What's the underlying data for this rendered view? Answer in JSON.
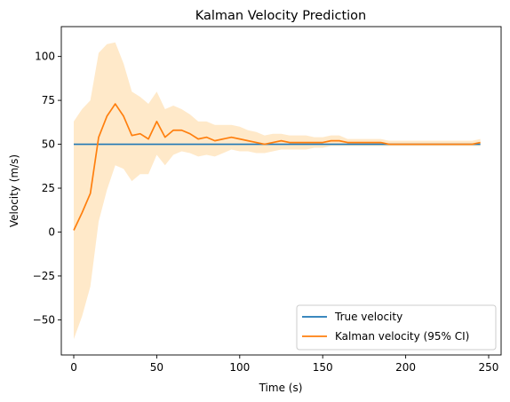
{
  "chart_data": {
    "type": "line",
    "title": "Kalman Velocity Prediction",
    "xlabel": "Time (s)",
    "ylabel": "Velocity (m/s)",
    "xlim": [
      -7.5,
      257.5
    ],
    "ylim": [
      -70,
      117
    ],
    "x_ticks": [
      0,
      50,
      100,
      150,
      200,
      250
    ],
    "x_tick_labels": [
      "0",
      "50",
      "100",
      "150",
      "200",
      "250"
    ],
    "y_ticks": [
      -50,
      -25,
      0,
      25,
      50,
      75,
      100
    ],
    "y_tick_labels": [
      "−50",
      "−25",
      "0",
      "25",
      "50",
      "75",
      "100"
    ],
    "grid": false,
    "legend_position": "lower-right",
    "series": [
      {
        "name": "True velocity",
        "color": "#1f77b4",
        "x": [
          0,
          245
        ],
        "y": [
          50,
          50
        ]
      },
      {
        "name": "Kalman velocity (95% CI)",
        "color": "#ff7f0e",
        "band_color": "#ffe9c9",
        "x": [
          0,
          5,
          10,
          15,
          20,
          25,
          30,
          35,
          40,
          45,
          50,
          55,
          60,
          65,
          70,
          75,
          80,
          85,
          90,
          95,
          100,
          105,
          110,
          115,
          120,
          125,
          130,
          135,
          140,
          145,
          150,
          155,
          160,
          165,
          170,
          175,
          180,
          185,
          190,
          195,
          200,
          205,
          210,
          215,
          220,
          225,
          230,
          235,
          240,
          245
        ],
        "y": [
          1,
          11,
          22,
          54,
          66,
          73,
          66,
          55,
          56,
          53,
          63,
          54,
          58,
          58,
          56,
          53,
          54,
          52,
          53,
          54,
          53,
          52,
          51,
          50,
          51,
          52,
          51,
          51,
          51,
          51,
          51,
          52,
          52,
          51,
          51,
          51,
          51,
          51,
          50,
          50,
          50,
          50,
          50,
          50,
          50,
          50,
          50,
          50,
          50,
          51
        ],
        "lower": [
          -61,
          -48,
          -31,
          6,
          24,
          38,
          36,
          29,
          33,
          33,
          44,
          38,
          44,
          46,
          45,
          43,
          44,
          43,
          45,
          47,
          46,
          46,
          45,
          45,
          46,
          47,
          47,
          47,
          47,
          48,
          48,
          49,
          49,
          49,
          49,
          49,
          49,
          49,
          49,
          49,
          49,
          49,
          49,
          49,
          49,
          49,
          49,
          49,
          49,
          49
        ],
        "upper": [
          63,
          70,
          75,
          102,
          107,
          108,
          96,
          80,
          77,
          73,
          80,
          70,
          72,
          70,
          67,
          63,
          63,
          61,
          61,
          61,
          60,
          58,
          57,
          55,
          56,
          56,
          55,
          55,
          55,
          54,
          54,
          55,
          55,
          53,
          53,
          53,
          53,
          53,
          52,
          52,
          52,
          52,
          52,
          52,
          52,
          52,
          52,
          52,
          52,
          53
        ]
      }
    ]
  }
}
